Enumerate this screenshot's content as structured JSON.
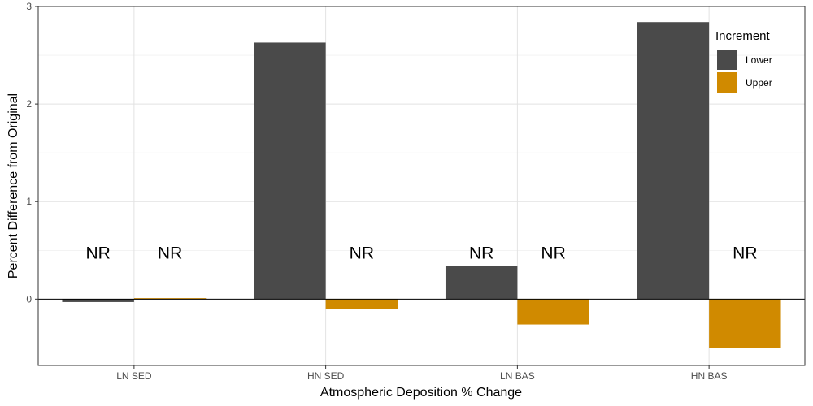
{
  "chart_data": {
    "type": "bar",
    "xlabel": "Atmospheric Deposition % Change",
    "ylabel": "Percent Difference from Original",
    "categories": [
      "LN SED",
      "HN SED",
      "LN BAS",
      "HN BAS"
    ],
    "series": [
      {
        "name": "Lower",
        "color": "#4a4a4a",
        "values": [
          -0.03,
          2.63,
          0.34,
          2.84
        ]
      },
      {
        "name": "Upper",
        "color": "#d08a00",
        "values": [
          0.01,
          -0.1,
          -0.26,
          -0.5
        ]
      }
    ],
    "ylim": [
      -0.68,
      3.0
    ],
    "yticks": [
      0,
      1,
      2,
      3
    ],
    "grid": true,
    "legend": {
      "title": "Increment",
      "position": "top-right"
    },
    "annotations": [
      {
        "text": "NR",
        "category": 0,
        "series": 0,
        "y": 0.48
      },
      {
        "text": "NR",
        "category": 0,
        "series": 1,
        "y": 0.48
      },
      {
        "text": "NR",
        "category": 1,
        "series": 1,
        "y": 0.48
      },
      {
        "text": "NR",
        "category": 2,
        "series": 0,
        "y": 0.48
      },
      {
        "text": "NR",
        "category": 2,
        "series": 1,
        "y": 0.48
      },
      {
        "text": "NR",
        "category": 3,
        "series": 1,
        "y": 0.48
      }
    ]
  }
}
